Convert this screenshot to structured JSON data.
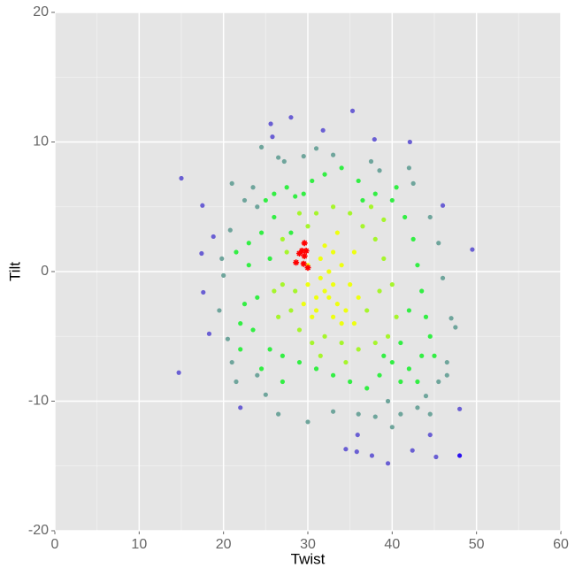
{
  "chart_data": {
    "type": "scatter",
    "x_label": "Twist",
    "y_label": "Tilt",
    "xlim": [
      0,
      60
    ],
    "ylim": [
      -20,
      20
    ],
    "xticks": [
      0,
      10,
      20,
      30,
      40,
      50,
      60
    ],
    "yticks": [
      -20,
      -10,
      0,
      10,
      20
    ],
    "x_minor_ticks": [
      5,
      15,
      25,
      35,
      45,
      55
    ],
    "y_minor_ticks": [
      -15,
      -5,
      5,
      15
    ],
    "grid": true,
    "series": [
      {
        "color": "#6fa59c",
        "marker": "circle",
        "x": [
          22.5,
          21.0,
          23.5,
          24.0,
          26.5,
          27.2,
          29.5,
          31.0,
          33.0,
          37.5,
          38.5,
          42.5,
          44.5,
          45.5,
          46.0,
          47.0,
          47.5,
          46.5,
          45.5,
          46.5,
          44.0,
          43.0,
          41.0,
          39.5,
          38.0,
          36.0,
          33.0,
          30.0,
          26.5,
          25.0,
          24.0,
          21.0,
          20.5,
          19.5,
          20.0,
          19.8,
          20.8,
          21.5,
          24.5,
          42.0,
          44.5,
          40.0
        ],
        "y": [
          5.5,
          6.8,
          6.5,
          5.0,
          8.8,
          8.5,
          8.9,
          9.5,
          9.0,
          8.5,
          7.8,
          6.8,
          4.2,
          2.2,
          -0.5,
          -3.6,
          -4.3,
          -7.0,
          -8.5,
          -8.0,
          -9.6,
          -10.5,
          -11.0,
          -10.0,
          -11.2,
          -11.0,
          -10.8,
          -11.6,
          -11.0,
          -9.5,
          -8.0,
          -7.0,
          -5.2,
          -3.0,
          -0.3,
          1.0,
          3.2,
          -8.5,
          9.6,
          8.0,
          -11.0,
          -12.0
        ]
      },
      {
        "color": "#33ee44",
        "marker": "circle",
        "x": [
          23.0,
          22.5,
          23.5,
          24.5,
          25.0,
          26.0,
          27.5,
          28.5,
          30.5,
          32.0,
          34.0,
          36.0,
          38.0,
          40.0,
          41.5,
          42.5,
          43.0,
          43.5,
          44.0,
          44.5,
          43.5,
          42.0,
          41.0,
          40.0,
          39.0,
          38.5,
          37.0,
          35.0,
          33.0,
          31.0,
          29.0,
          27.0,
          25.5,
          24.0,
          22.0,
          21.5,
          23.0,
          25.5,
          26.0,
          28.0,
          24.5,
          27.0,
          41.0,
          42.0,
          40.5,
          36.5,
          29.5,
          22.0,
          45.0,
          43.0
        ],
        "y": [
          0.5,
          -2.5,
          -4.5,
          3.0,
          5.5,
          6.0,
          6.5,
          5.8,
          7.0,
          7.5,
          8.0,
          7.0,
          6.0,
          5.5,
          4.2,
          2.5,
          0.5,
          -1.5,
          -3.5,
          -5.0,
          -6.5,
          -7.5,
          -8.5,
          -7.0,
          -6.5,
          -8.0,
          -9.0,
          -8.5,
          -8.0,
          -7.5,
          -7.0,
          -6.5,
          -6.0,
          -2.0,
          -4.0,
          1.5,
          2.2,
          1.0,
          4.2,
          3.0,
          -7.5,
          -8.5,
          -5.5,
          -3.0,
          6.5,
          5.5,
          6.0,
          -6.0,
          -6.5,
          -8.5
        ]
      },
      {
        "color": "#a6f52c",
        "marker": "circle",
        "x": [
          27.0,
          27.5,
          28.0,
          29.0,
          30.0,
          31.0,
          33.0,
          35.0,
          36.5,
          38.0,
          39.0,
          40.0,
          40.5,
          39.5,
          38.0,
          36.0,
          34.0,
          32.0,
          30.5,
          28.5,
          26.5,
          27.0,
          29.0,
          37.0,
          38.5,
          31.5,
          34.5,
          26.0,
          39.0,
          37.5
        ],
        "y": [
          -1.0,
          1.5,
          -3.0,
          -4.5,
          3.5,
          4.5,
          5.0,
          4.5,
          3.5,
          2.5,
          1.0,
          -1.0,
          -3.5,
          -5.0,
          -5.5,
          -6.0,
          -5.5,
          -5.0,
          -5.5,
          -1.5,
          -3.5,
          2.5,
          4.5,
          -3.0,
          -1.5,
          -6.5,
          -7.0,
          -1.5,
          4.0,
          5.0
        ]
      },
      {
        "color": "#eeff10",
        "marker": "circle",
        "x": [
          30.0,
          31.0,
          32.0,
          33.0,
          33.5,
          32.5,
          31.5,
          34.0,
          35.0,
          34.5,
          33.0,
          31.0,
          30.0,
          32.0,
          35.5,
          36.0,
          29.5,
          33.0,
          34.0,
          32.5,
          31.5,
          30.5,
          35.5,
          33.5
        ],
        "y": [
          -1.0,
          -2.0,
          -1.5,
          -1.0,
          -2.5,
          0.0,
          1.0,
          0.5,
          -1.0,
          -3.0,
          -3.5,
          -3.0,
          0.5,
          2.0,
          1.5,
          -2.0,
          -2.5,
          1.5,
          -4.0,
          -2.0,
          -0.5,
          -3.5,
          -4.0,
          3.0
        ]
      },
      {
        "color": "#6a5fd3",
        "marker": "circle",
        "x": [
          15.0,
          14.7,
          25.6,
          28.0,
          25.8,
          31.8,
          35.3,
          37.9,
          42.1,
          46.0,
          49.5,
          48.0,
          45.2,
          42.4,
          39.5,
          34.5,
          35.8,
          35.9,
          37.6,
          44.5,
          22.0,
          18.3,
          17.5,
          18.8,
          17.4,
          17.6
        ],
        "y": [
          7.2,
          -7.8,
          11.4,
          11.9,
          10.4,
          10.9,
          12.4,
          10.2,
          10.0,
          5.1,
          1.7,
          -10.6,
          -14.3,
          -13.8,
          -14.8,
          -13.7,
          -13.9,
          -12.6,
          -14.2,
          -12.6,
          -10.5,
          -4.8,
          5.1,
          2.7,
          1.4,
          -1.6
        ]
      },
      {
        "color": "#2a10f0",
        "marker": "circle",
        "x": [
          48.0
        ],
        "y": [
          -14.2
        ]
      },
      {
        "color": "#ff0000",
        "marker": "asterisk",
        "x": [
          29.6,
          29.0,
          29.6,
          28.6,
          29.5,
          30.0,
          29.3,
          29.8
        ],
        "y": [
          2.2,
          1.4,
          1.2,
          0.7,
          0.6,
          0.3,
          1.6,
          1.6
        ]
      }
    ]
  }
}
